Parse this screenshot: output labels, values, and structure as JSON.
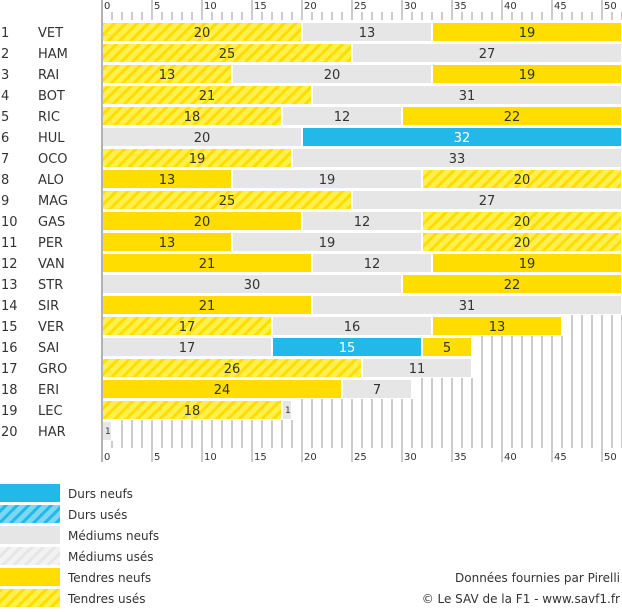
{
  "chart_data": {
    "type": "bar",
    "orientation": "horizontal-stacked",
    "xlim": [
      0,
      52
    ],
    "x_ticks": [
      0,
      5,
      10,
      15,
      20,
      25,
      30,
      35,
      40,
      45,
      50
    ],
    "grid": true,
    "compounds": {
      "DN": {
        "label": "Durs neufs",
        "color": "#22B8E8",
        "hatched": false
      },
      "DU": {
        "label": "Durs usés",
        "color": "#22B8E8",
        "hatched": true
      },
      "MN": {
        "label": "Médiums neufs",
        "color": "#E6E6E6",
        "hatched": false
      },
      "MU": {
        "label": "Médiums usés",
        "color": "#E6E6E6",
        "hatched": true
      },
      "TN": {
        "label": "Tendres neufs",
        "color": "#FFDD00",
        "hatched": false
      },
      "TU": {
        "label": "Tendres usés",
        "color": "#FFDD00",
        "hatched": true
      }
    },
    "legend_order": [
      "DN",
      "DU",
      "MN",
      "MU",
      "TN",
      "TU"
    ],
    "legend_placement": "bottom-left",
    "rows": [
      {
        "pos": "1",
        "driver": "VET",
        "stints": [
          [
            "TU",
            20
          ],
          [
            "MN",
            13
          ],
          [
            "TN",
            19
          ]
        ]
      },
      {
        "pos": "2",
        "driver": "HAM",
        "stints": [
          [
            "TU",
            25
          ],
          [
            "MN",
            27
          ]
        ]
      },
      {
        "pos": "3",
        "driver": "RAI",
        "stints": [
          [
            "TU",
            13
          ],
          [
            "MN",
            20
          ],
          [
            "TN",
            19
          ]
        ]
      },
      {
        "pos": "4",
        "driver": "BOT",
        "stints": [
          [
            "TU",
            21
          ],
          [
            "MN",
            31
          ]
        ]
      },
      {
        "pos": "5",
        "driver": "RIC",
        "stints": [
          [
            "TU",
            18
          ],
          [
            "MN",
            12
          ],
          [
            "TN",
            22
          ]
        ]
      },
      {
        "pos": "6",
        "driver": "HUL",
        "stints": [
          [
            "MN",
            20
          ],
          [
            "DN",
            32
          ]
        ]
      },
      {
        "pos": "7",
        "driver": "OCO",
        "stints": [
          [
            "TU",
            19
          ],
          [
            "MN",
            33
          ]
        ]
      },
      {
        "pos": "8",
        "driver": "ALO",
        "stints": [
          [
            "TN",
            13
          ],
          [
            "MN",
            19
          ],
          [
            "TU",
            20
          ]
        ]
      },
      {
        "pos": "9",
        "driver": "MAG",
        "stints": [
          [
            "TU",
            25
          ],
          [
            "MN",
            27
          ]
        ]
      },
      {
        "pos": "10",
        "driver": "GAS",
        "stints": [
          [
            "TN",
            20
          ],
          [
            "MN",
            12
          ],
          [
            "TU",
            20
          ]
        ]
      },
      {
        "pos": "11",
        "driver": "PER",
        "stints": [
          [
            "TN",
            13
          ],
          [
            "MN",
            19
          ],
          [
            "TU",
            20
          ]
        ]
      },
      {
        "pos": "12",
        "driver": "VAN",
        "stints": [
          [
            "TN",
            21
          ],
          [
            "MN",
            12
          ],
          [
            "TN",
            19
          ]
        ]
      },
      {
        "pos": "13",
        "driver": "STR",
        "stints": [
          [
            "MN",
            30
          ],
          [
            "TN",
            22
          ]
        ]
      },
      {
        "pos": "14",
        "driver": "SIR",
        "stints": [
          [
            "TN",
            21
          ],
          [
            "MN",
            31
          ]
        ]
      },
      {
        "pos": "15",
        "driver": "VER",
        "stints": [
          [
            "TU",
            17
          ],
          [
            "MN",
            16
          ],
          [
            "TN",
            13
          ]
        ]
      },
      {
        "pos": "16",
        "driver": "SAI",
        "stints": [
          [
            "MN",
            17
          ],
          [
            "DN",
            15
          ],
          [
            "TN",
            5
          ]
        ]
      },
      {
        "pos": "17",
        "driver": "GRO",
        "stints": [
          [
            "TU",
            26
          ],
          [
            "MN",
            11
          ]
        ]
      },
      {
        "pos": "18",
        "driver": "ERI",
        "stints": [
          [
            "TN",
            24
          ],
          [
            "MN",
            7
          ]
        ]
      },
      {
        "pos": "19",
        "driver": "LEC",
        "stints": [
          [
            "TU",
            18
          ],
          [
            "MN",
            1
          ]
        ]
      },
      {
        "pos": "20",
        "driver": "HAR",
        "stints": [
          [
            "MN",
            1
          ]
        ]
      }
    ]
  },
  "credits": {
    "source": "Données fournies par Pirelli",
    "copyright": "© Le SAV de la F1 - www.savf1.fr"
  }
}
